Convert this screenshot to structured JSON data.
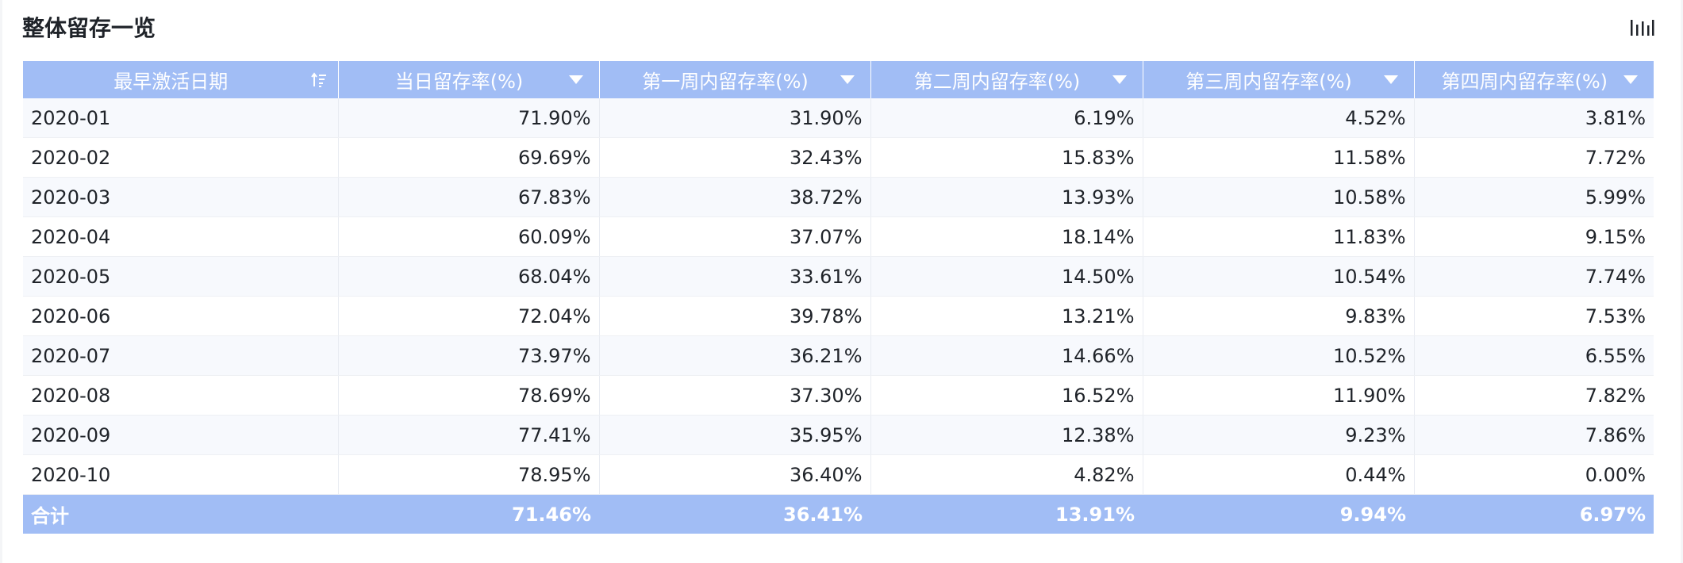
{
  "title": "整体留存一览",
  "colors": {
    "header_bg": "#a1bdf5",
    "header_text": "#ffffff",
    "row_stripe": "#f7f9fd"
  },
  "toolbar": {
    "chart_icon": "bar-chart-icon"
  },
  "table": {
    "columns": [
      {
        "label": "最早激活日期",
        "icon": "sort-ascending-icon"
      },
      {
        "label": "当日留存率(%)",
        "icon": "filter-dropdown-icon"
      },
      {
        "label": "第一周内留存率(%)",
        "icon": "filter-dropdown-icon"
      },
      {
        "label": "第二周内留存率(%)",
        "icon": "filter-dropdown-icon"
      },
      {
        "label": "第三周内留存率(%)",
        "icon": "filter-dropdown-icon"
      },
      {
        "label": "第四周内留存率(%)",
        "icon": "filter-dropdown-icon"
      }
    ],
    "rows": [
      [
        "2020-01",
        "71.90%",
        "31.90%",
        "6.19%",
        "4.52%",
        "3.81%"
      ],
      [
        "2020-02",
        "69.69%",
        "32.43%",
        "15.83%",
        "11.58%",
        "7.72%"
      ],
      [
        "2020-03",
        "67.83%",
        "38.72%",
        "13.93%",
        "10.58%",
        "5.99%"
      ],
      [
        "2020-04",
        "60.09%",
        "37.07%",
        "18.14%",
        "11.83%",
        "9.15%"
      ],
      [
        "2020-05",
        "68.04%",
        "33.61%",
        "14.50%",
        "10.54%",
        "7.74%"
      ],
      [
        "2020-06",
        "72.04%",
        "39.78%",
        "13.21%",
        "9.83%",
        "7.53%"
      ],
      [
        "2020-07",
        "73.97%",
        "36.21%",
        "14.66%",
        "10.52%",
        "6.55%"
      ],
      [
        "2020-08",
        "78.69%",
        "37.30%",
        "16.52%",
        "11.90%",
        "7.82%"
      ],
      [
        "2020-09",
        "77.41%",
        "35.95%",
        "12.38%",
        "9.23%",
        "7.86%"
      ],
      [
        "2020-10",
        "78.95%",
        "36.40%",
        "4.82%",
        "0.44%",
        "0.00%"
      ]
    ],
    "total": [
      "合计",
      "71.46%",
      "36.41%",
      "13.91%",
      "9.94%",
      "6.97%"
    ]
  }
}
